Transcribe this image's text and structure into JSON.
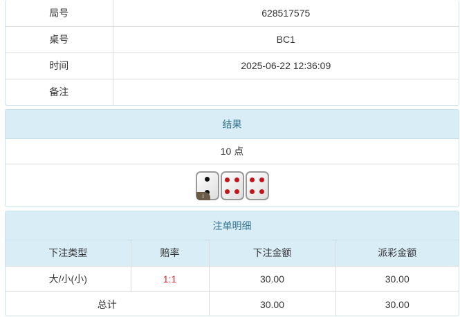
{
  "info": [
    {
      "label": "局号",
      "value": "628517575"
    },
    {
      "label": "桌号",
      "value": "BC1"
    },
    {
      "label": "时间",
      "value": "2025-06-22 12:36:09"
    },
    {
      "label": "备注",
      "value": ""
    }
  ],
  "result": {
    "title": "结果",
    "points": "10 点",
    "dice": [
      2,
      4,
      4
    ],
    "badge": "i"
  },
  "bets": {
    "title": "注单明细",
    "headers": [
      "下注类型",
      "赔率",
      "下注金额",
      "派彩金额"
    ],
    "rows": [
      {
        "type": "大/小(小)",
        "odds": "1:1",
        "amount": "30.00",
        "payout": "30.00"
      }
    ],
    "total": {
      "label": "总计",
      "amount": "30.00",
      "payout": "30.00"
    }
  },
  "colors": {
    "header_bg": "#d9edf7",
    "header_text": "#31708f",
    "odds": "#e4242b"
  }
}
